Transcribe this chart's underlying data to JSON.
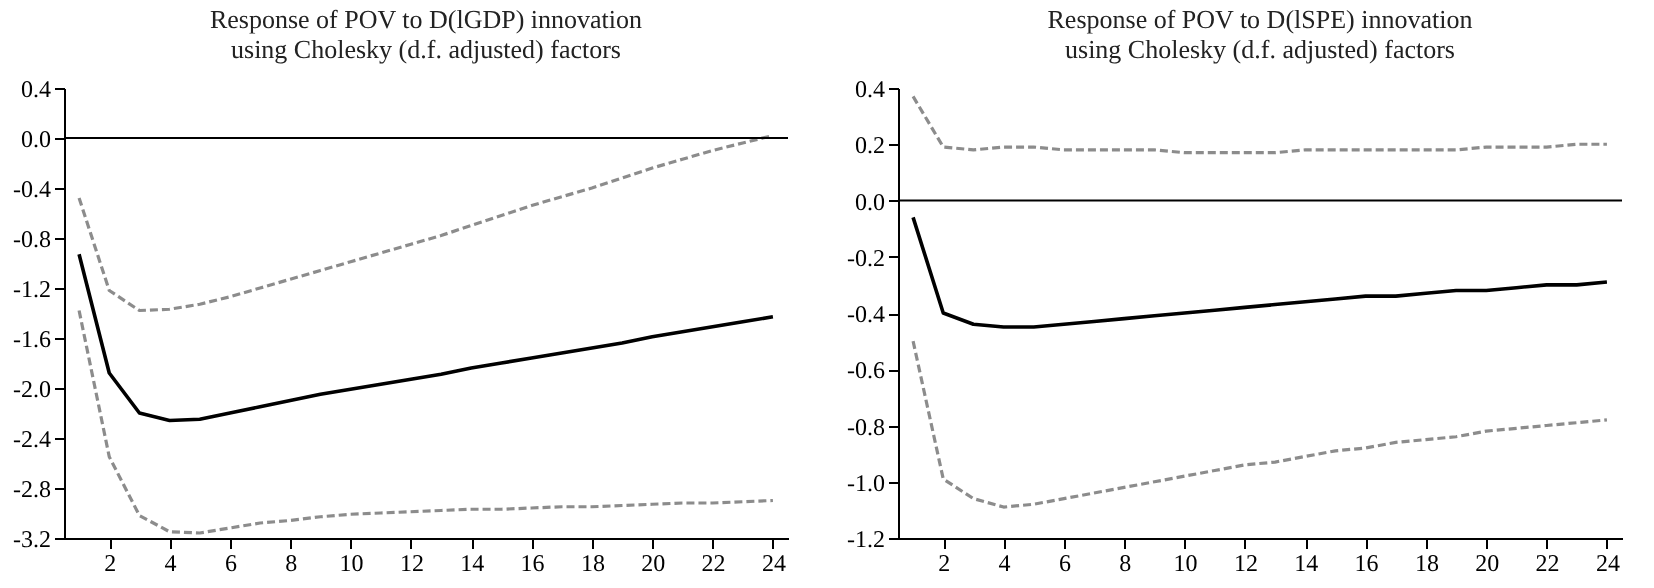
{
  "chart_data": [
    {
      "type": "line",
      "title": "Response of POV to D(lGDP) innovation\nusing Cholesky (d.f. adjusted) factors",
      "x": [
        1,
        2,
        3,
        4,
        5,
        6,
        7,
        8,
        9,
        10,
        11,
        12,
        13,
        14,
        15,
        16,
        17,
        18,
        19,
        20,
        21,
        22,
        23,
        24
      ],
      "series": [
        {
          "color": "#000000",
          "line_style": "solid",
          "values": [
            -0.93,
            -1.88,
            -2.2,
            -2.26,
            -2.25,
            -2.2,
            -2.15,
            -2.1,
            -2.05,
            -2.01,
            -1.97,
            -1.93,
            -1.89,
            -1.84,
            -1.8,
            -1.76,
            -1.72,
            -1.68,
            -1.64,
            -1.59,
            -1.55,
            -1.51,
            -1.47,
            -1.43
          ]
        },
        {
          "color": "#8c8c8c",
          "line_style": "dashed",
          "values": [
            -0.48,
            -1.22,
            -1.38,
            -1.37,
            -1.33,
            -1.27,
            -1.2,
            -1.13,
            -1.06,
            -0.99,
            -0.92,
            -0.85,
            -0.78,
            -0.7,
            -0.62,
            -0.54,
            -0.47,
            -0.4,
            -0.32,
            -0.24,
            -0.17,
            -0.1,
            -0.04,
            0.02
          ]
        },
        {
          "color": "#8c8c8c",
          "line_style": "dashed",
          "values": [
            -1.38,
            -2.55,
            -3.02,
            -3.15,
            -3.16,
            -3.12,
            -3.08,
            -3.06,
            -3.03,
            -3.01,
            -3.0,
            -2.99,
            -2.98,
            -2.97,
            -2.97,
            -2.96,
            -2.95,
            -2.95,
            -2.94,
            -2.93,
            -2.92,
            -2.92,
            -2.91,
            -2.9
          ]
        }
      ],
      "xlim": [
        0.5,
        24.5
      ],
      "xticks": [
        2,
        4,
        6,
        8,
        10,
        12,
        14,
        16,
        18,
        20,
        22,
        24
      ],
      "ylim": [
        -3.2,
        0.4
      ],
      "yticks": [
        {
          "value": -3.2,
          "label": "-3.2"
        },
        {
          "value": -2.8,
          "label": "-2.8"
        },
        {
          "value": -2.4,
          "label": "-2.4"
        },
        {
          "value": -2,
          "label": "-2.0"
        },
        {
          "value": -1.6,
          "label": "-1.6"
        },
        {
          "value": -1.2,
          "label": "-1.2"
        },
        {
          "value": -0.8,
          "label": "-0.8"
        },
        {
          "value": -0.4,
          "label": "-0.4"
        },
        {
          "value": 0,
          "label": "0.0"
        },
        {
          "value": 0.4,
          "label": "0.4"
        }
      ],
      "ref_lines": [
        {
          "axis": "y",
          "value": 0,
          "color": "#000000"
        }
      ],
      "grid": false
    },
    {
      "type": "line",
      "title": "Response of POV to D(lSPE) innovation\nusing Cholesky (d.f. adjusted) factors",
      "x": [
        1,
        2,
        3,
        4,
        5,
        6,
        7,
        8,
        9,
        10,
        11,
        12,
        13,
        14,
        15,
        16,
        17,
        18,
        19,
        20,
        21,
        22,
        23,
        24
      ],
      "series": [
        {
          "color": "#000000",
          "line_style": "solid",
          "values": [
            -0.06,
            -0.4,
            -0.44,
            -0.45,
            -0.45,
            -0.44,
            -0.43,
            -0.42,
            -0.41,
            -0.4,
            -0.39,
            -0.38,
            -0.37,
            -0.36,
            -0.35,
            -0.34,
            -0.34,
            -0.33,
            -0.32,
            -0.32,
            -0.31,
            -0.3,
            -0.3,
            -0.29
          ]
        },
        {
          "color": "#8c8c8c",
          "line_style": "dashed",
          "values": [
            0.37,
            0.19,
            0.18,
            0.19,
            0.19,
            0.18,
            0.18,
            0.18,
            0.18,
            0.17,
            0.17,
            0.17,
            0.17,
            0.18,
            0.18,
            0.18,
            0.18,
            0.18,
            0.18,
            0.19,
            0.19,
            0.19,
            0.2,
            0.2
          ]
        },
        {
          "color": "#8c8c8c",
          "line_style": "dashed",
          "values": [
            -0.5,
            -0.99,
            -1.06,
            -1.09,
            -1.08,
            -1.06,
            -1.04,
            -1.02,
            -1.0,
            -0.98,
            -0.96,
            -0.94,
            -0.93,
            -0.91,
            -0.89,
            -0.88,
            -0.86,
            -0.85,
            -0.84,
            -0.82,
            -0.81,
            -0.8,
            -0.79,
            -0.78
          ]
        }
      ],
      "xlim": [
        0.5,
        24.5
      ],
      "xticks": [
        2,
        4,
        6,
        8,
        10,
        12,
        14,
        16,
        18,
        20,
        22,
        24
      ],
      "ylim": [
        -1.2,
        0.4
      ],
      "yticks": [
        {
          "value": -1.2,
          "label": "-1.2"
        },
        {
          "value": -1,
          "label": "-1.0"
        },
        {
          "value": -0.8,
          "label": "-0.8"
        },
        {
          "value": -0.6,
          "label": "-0.6"
        },
        {
          "value": -0.4,
          "label": "-0.4"
        },
        {
          "value": -0.2,
          "label": "-0.2"
        },
        {
          "value": 0,
          "label": "0.0"
        },
        {
          "value": 0.2,
          "label": "0.2"
        },
        {
          "value": 0.4,
          "label": "0.4"
        }
      ],
      "ref_lines": [
        {
          "axis": "y",
          "value": 0,
          "color": "#000000"
        }
      ],
      "grid": false
    }
  ]
}
